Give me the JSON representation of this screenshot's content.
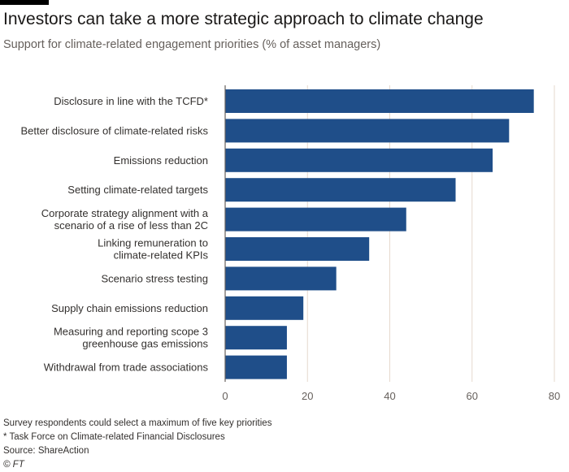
{
  "title": "Investors can take a more strategic approach to climate change",
  "subtitle": "Support for climate-related engagement priorities (% of asset managers)",
  "chart_data": {
    "type": "bar",
    "orientation": "horizontal",
    "categories": [
      [
        "Disclosure in line with the TCFD*"
      ],
      [
        "Better disclosure of climate-related risks"
      ],
      [
        "Emissions reduction"
      ],
      [
        "Setting climate-related targets"
      ],
      [
        "Corporate strategy alignment with a",
        "scenario of a rise of less than 2C"
      ],
      [
        "Linking remuneration to",
        "climate-related KPIs"
      ],
      [
        "Scenario stress testing"
      ],
      [
        "Supply chain emissions reduction"
      ],
      [
        "Measuring and reporting scope 3",
        "greenhouse gas emissions"
      ],
      [
        "Withdrawal from trade associations"
      ]
    ],
    "values": [
      75,
      69,
      65,
      56,
      44,
      35,
      27,
      19,
      15,
      15
    ],
    "xlim": [
      0,
      80
    ],
    "xticks": [
      0,
      20,
      40,
      60,
      80
    ],
    "xtick_labels": [
      "0",
      "20",
      "40",
      "60",
      "80"
    ],
    "bar_color": "#1f4e89",
    "grid_color": "#e6d9ce",
    "axis_color": "#66605c"
  },
  "footnotes": {
    "note": "Survey respondents could select a maximum of five key priorities",
    "asterisk": "* Task Force on Climate-related Financial Disclosures",
    "source": "Source: ShareAction",
    "credit": "© FT"
  }
}
